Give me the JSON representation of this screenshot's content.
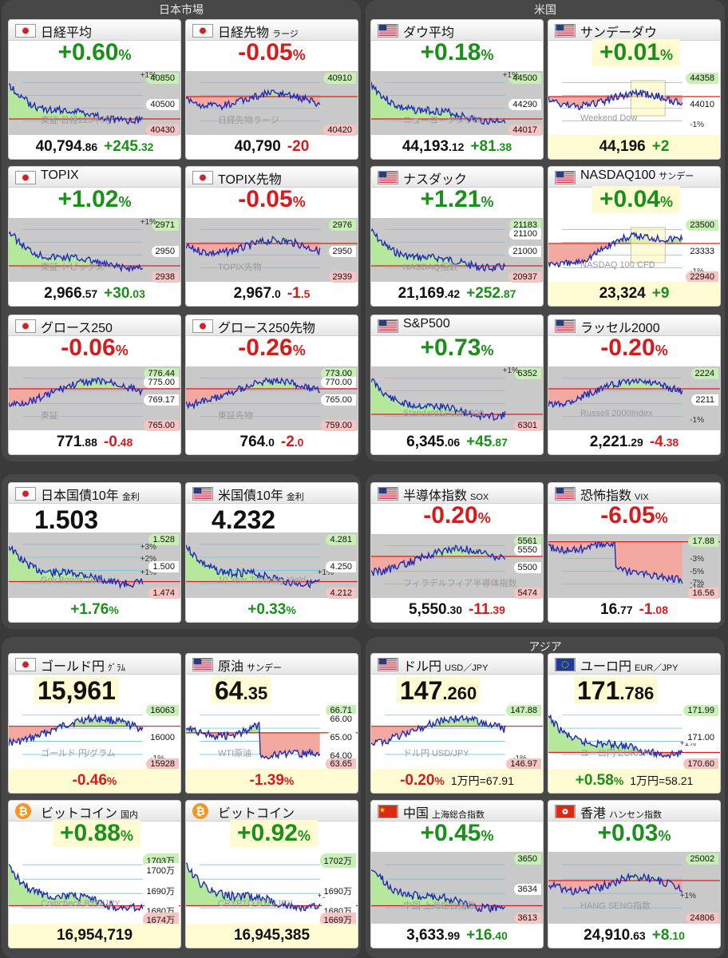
{
  "sections": {
    "japan": "日本市場",
    "us": "米国",
    "asia": "アジア"
  },
  "tiles": {
    "nikkei": {
      "name": "日経平均",
      "sub": "",
      "pct": "+0.60",
      "unit": "%",
      "top": "40850",
      "pct1": "+1%",
      "mid": "40500",
      "low": "40430",
      "wm": "東証 日経225平均",
      "level_big": "40,794",
      "level_small": ".86",
      "chg_big": "+245",
      "chg_small": ".32"
    },
    "nikkeif": {
      "name": "日経先物",
      "sub": "ラージ",
      "pct": "-0.05",
      "unit": "%",
      "top": "40910",
      "low": "40420",
      "wm": "日経先物ラージ",
      "level_big": "40,790",
      "level_small": "",
      "chg_big": "-20",
      "chg_small": ""
    },
    "dow": {
      "name": "ダウ平均",
      "sub": "",
      "pct": "+0.18",
      "unit": "%",
      "top": "44500",
      "pct1": "+1%",
      "mid": "44290",
      "low": "44017",
      "wm": "ニューヨークダウ30",
      "level_big": "44,193",
      "level_small": ".12",
      "chg_big": "+81",
      "chg_small": ".38"
    },
    "sundow": {
      "name": "サンデーダウ",
      "sub": "",
      "pct": "+0.01",
      "unit": "%",
      "top": "44358",
      "mid": "44010",
      "m1": "-1%",
      "wm": "Weekend Dow",
      "level_big": "44,196",
      "level_small": "",
      "chg_big": "+2",
      "chg_small": ""
    },
    "topix": {
      "name": "TOPIX",
      "sub": "",
      "pct": "+1.02",
      "unit": "%",
      "top": "2971",
      "pct1": "+1%",
      "mid": "2950",
      "low": "2938",
      "wm": "東証 トピックス",
      "level_big": "2,966",
      "level_small": ".57",
      "chg_big": "+30",
      "chg_small": ".03"
    },
    "topixf": {
      "name": "TOPIX先物",
      "sub": "",
      "pct": "-0.05",
      "unit": "%",
      "top": "2976",
      "mid": "2950",
      "low": "2939",
      "wm": "TOPIX先物",
      "level_big": "2,967",
      "level_small": ".0",
      "chg_big": "-1",
      "chg_small": ".5"
    },
    "nasdaq": {
      "name": "ナスダック",
      "sub": "",
      "pct": "+1.21",
      "unit": "%",
      "top": "21183",
      "t2": "21100",
      "mid": "21000",
      "low": "20937",
      "wm": "NASDAQ指数",
      "level_big": "21,169",
      "level_small": ".42",
      "chg_big": "+252",
      "chg_small": ".87"
    },
    "nasdaq100": {
      "name": "NASDAQ100",
      "sub": "サンデー",
      "pct": "+0.04",
      "unit": "%",
      "top": "23500",
      "mid": "23333",
      "m1": "-1%",
      "low": "22940",
      "wm": "NASDAQ 100 CFD",
      "level_big": "23,324",
      "level_small": "",
      "chg_big": "+9",
      "chg_small": ""
    },
    "growth": {
      "name": "グロース250",
      "sub": "",
      "pct": "-0.06",
      "unit": "%",
      "top": "776.44",
      "t2": "775.00",
      "mid": "769.17",
      "low": "765.00",
      "wm": "東証",
      "level_big": "771",
      "level_small": ".88",
      "chg_big": "-0",
      "chg_small": ".48"
    },
    "growthf": {
      "name": "グロース250先物",
      "sub": "",
      "pct": "-0.26",
      "unit": "%",
      "top": "773.00",
      "t2": "770.00",
      "mid": "765.00",
      "low": "759.00",
      "wm": "東証先物",
      "level_big": "764",
      "level_small": ".0",
      "chg_big": "-2",
      "chg_small": ".0"
    },
    "sp500": {
      "name": "S&P500",
      "sub": "",
      "pct": "+0.73",
      "unit": "%",
      "pct1": "+1%",
      "top": "6352",
      "low": "6301",
      "wm": "Standard&Poor's500",
      "level_big": "6,345",
      "level_small": ".06",
      "chg_big": "+45",
      "chg_small": ".87"
    },
    "russell": {
      "name": "ラッセル2000",
      "sub": "",
      "pct": "-0.20",
      "unit": "%",
      "top": "2224",
      "mid": "2211",
      "m1": "-1%",
      "wm": "Russell 2000Index",
      "level_big": "2,221",
      "level_small": ".29",
      "chg_big": "-4",
      "chg_small": ".38"
    },
    "jgb": {
      "name": "日本国債10年",
      "sub": "金利",
      "level": "1.503",
      "top": "1.528",
      "p3": "+3%",
      "p2": "+2%",
      "mid": "1.500",
      "p1": "+1%",
      "low": "1.474",
      "wm": "Gov.Bonds 10Y",
      "chg": "+1.76",
      "unit": "%"
    },
    "ust": {
      "name": "米国債10年",
      "sub": "金利",
      "level": "4.232",
      "top": "4.281",
      "p1": "+1%",
      "mid": "4.250",
      "low": "4.212",
      "wm": "10 Year Treasury Yield",
      "chg": "+0.33",
      "unit": "%"
    },
    "sox": {
      "name": "半導体指数",
      "sub": "SOX",
      "pct": "-0.20",
      "unit": "%",
      "top": "5561",
      "t2": "5550",
      "mid": "5500",
      "low": "5474",
      "wm": "フィラデルフィア半導体指数",
      "level_big": "5,550",
      "level_small": ".30",
      "chg_big": "-11",
      "chg_small": ".39"
    },
    "vix": {
      "name": "恐怖指数",
      "sub": "VIX",
      "pct": "-6.05",
      "unit": "%",
      "top": "17.88",
      "m1": "-1%",
      "m3": "-3%",
      "m5": "-5%",
      "m7": "-7%",
      "low": "16.56",
      "level_big": "16",
      "level_small": ".77",
      "chg_big": "-1",
      "chg_small": ".08"
    },
    "goldjpy": {
      "name": "ゴールド円",
      "sub": "ｸﾞﾗﾑ",
      "level": "15,961",
      "top": "16063",
      "mid": "16000",
      "low": "15928",
      "m1": "-1%",
      "wm": "ゴールド 円/グラム",
      "chg": "-0.46",
      "unit": "%"
    },
    "oil": {
      "name": "原油",
      "sub": "サンデー",
      "level_big": "64",
      "level_small": ".35",
      "top": "66.71",
      "t2": "66.00",
      "mid": "65.00",
      "m1": "-1%",
      "m2": "64.00",
      "low": "63.65",
      "wm": "WTI原油",
      "chg": "-1.39",
      "unit": "%"
    },
    "usdjpy": {
      "name": "ドル円",
      "sub": "USD／JPY",
      "level_big": "147",
      "level_small": ".260",
      "top": "147.88",
      "low": "146.97",
      "m1": "-1%",
      "wm": "ドル円 USD/JPY",
      "chg": "-0.20",
      "unit": "%",
      "note": "1万円=67.91"
    },
    "eurjpy": {
      "name": "ユーロ円",
      "sub": "EUR／JPY",
      "level_big": "171",
      "level_small": ".786",
      "p1": "+1%",
      "top": "171.99",
      "mid": "171.00",
      "low": "170.60",
      "wm": "ユーロ円 EUR/JPY",
      "chg": "+0.58",
      "unit": "%",
      "note": "1万円=58.21"
    },
    "btcjp": {
      "name": "ビットコイン",
      "sub": "国内",
      "pct": "+0.88",
      "unit": "%",
      "top": "1703万",
      "t2": "1700万",
      "mid": "1690万",
      "m2": "1680万",
      "low": "1674万",
      "wm": "Coincheck BTC/JPY",
      "level": "16,954,719"
    },
    "btc": {
      "name": "ビットコイン",
      "sub": "",
      "pct": "+0.92",
      "unit": "%",
      "top": "1702万",
      "p1": "+1%",
      "mid": "1690万",
      "m2": "1680万",
      "low": "1669万",
      "wm": "CRYPTO BTC/JPY",
      "level": "16,945,385"
    },
    "china": {
      "name": "中国",
      "sub": "上海総合指数",
      "pct": "+0.45",
      "unit": "%",
      "top": "3650",
      "mid": "3634",
      "low": "3613",
      "wm": "中国 上海総合指数",
      "level_big": "3,633",
      "level_small": ".99",
      "chg_big": "+16",
      "chg_small": ".40"
    },
    "hk": {
      "name": "香港",
      "sub": "ハンセン指数",
      "pct": "+0.03",
      "unit": "%",
      "p1": "+1%",
      "top": "25002",
      "low": "24806",
      "wm": "HANG SENG指数",
      "level_big": "24,910",
      "level_small": ".63",
      "chg_big": "+8",
      "chg_small": ".10"
    }
  },
  "colors": {
    "up": "#1a8f1a",
    "down": "#d41c1c",
    "line": "#1f2bb5",
    "fill_up": "#b6e89c",
    "fill_down": "#f3a9a0",
    "base": "#d81e1e"
  },
  "icons": {
    "jp": "japan-flag-icon",
    "us": "us-flag-icon",
    "eu": "eu-flag-icon",
    "cn": "china-flag-icon",
    "hk": "hongkong-flag-icon",
    "btc": "bitcoin-icon"
  }
}
